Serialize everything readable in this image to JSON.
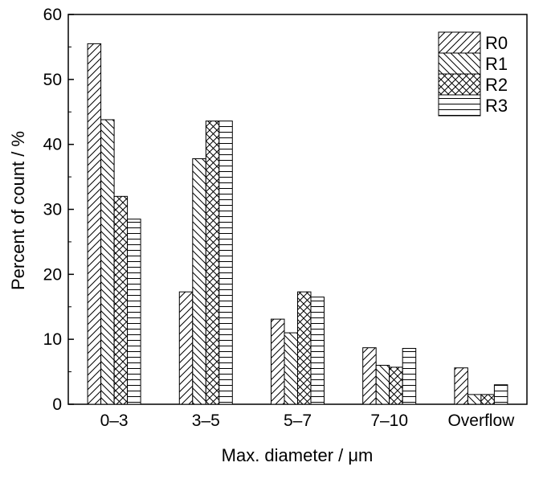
{
  "chart_data": {
    "type": "bar",
    "title": "",
    "xlabel": "Max. diameter / μm",
    "ylabel": "Percent of count / %",
    "ylim": [
      0,
      60
    ],
    "yticks": [
      0,
      10,
      20,
      30,
      40,
      50,
      60
    ],
    "categories": [
      "0–3",
      "3–5",
      "5–7",
      "7–10",
      "Overflow"
    ],
    "series": [
      {
        "name": "R0",
        "values": [
          55.5,
          17.3,
          13.1,
          8.7,
          5.6
        ],
        "pattern": "diag-right"
      },
      {
        "name": "R1",
        "values": [
          43.8,
          37.8,
          11.0,
          6.0,
          1.5
        ],
        "pattern": "diag-left"
      },
      {
        "name": "R2",
        "values": [
          32.0,
          43.6,
          17.3,
          5.7,
          1.5
        ],
        "pattern": "cross"
      },
      {
        "name": "R3",
        "values": [
          28.5,
          43.6,
          16.5,
          8.6,
          3.0
        ],
        "pattern": "horizontal"
      }
    ],
    "legend": "top-right",
    "grid": false,
    "colors": {
      "bar_fill": "#ffffff",
      "stroke": "#000000"
    }
  }
}
